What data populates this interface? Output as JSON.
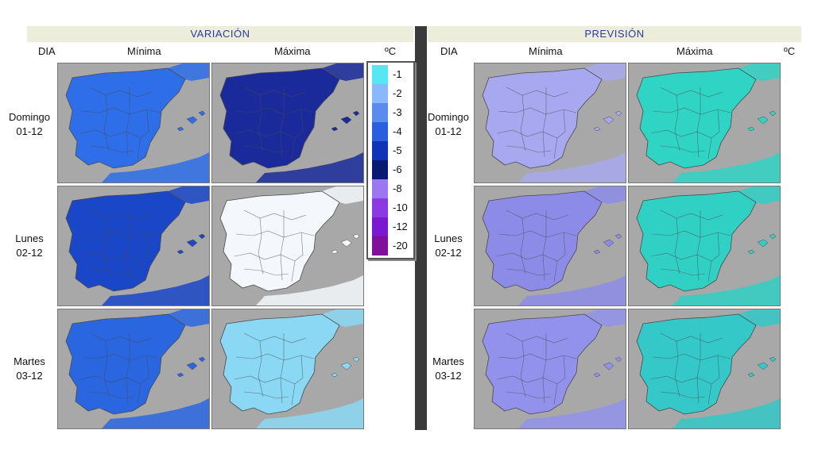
{
  "variacion": {
    "title": "VARIACIÓN",
    "col_dia": "DIA",
    "col_min": "Mínima",
    "col_max": "Máxima",
    "unit": "ºC"
  },
  "prevision": {
    "title": "PREVISIÓN",
    "col_dia": "DIA",
    "col_min": "Mínima",
    "col_max": "Máxima",
    "unit": "ºC"
  },
  "days": [
    {
      "name": "Domingo",
      "date": "01-12"
    },
    {
      "name": "Lunes",
      "date": "02-12"
    },
    {
      "name": "Martes",
      "date": "03-12"
    }
  ],
  "legend": [
    {
      "label": "-1",
      "color": "#55e8f4"
    },
    {
      "label": "-2",
      "color": "#8ab8ff"
    },
    {
      "label": "-3",
      "color": "#5a8cf0"
    },
    {
      "label": "-4",
      "color": "#2a5ee0"
    },
    {
      "label": "-5",
      "color": "#1034b8"
    },
    {
      "label": "-6",
      "color": "#0a1a72"
    },
    {
      "label": "-8",
      "color": "#9c78f0"
    },
    {
      "label": "-10",
      "color": "#8a3ae0"
    },
    {
      "label": "-12",
      "color": "#7a1ad0"
    },
    {
      "label": "-20",
      "color": "#80109a"
    }
  ],
  "map_colors": {
    "var_min_0": "#2e6ee8",
    "var_max_0": "#1a2a9a",
    "var_min_1": "#1a46c8",
    "var_max_1": "#f4f8fc",
    "var_min_2": "#2a66e0",
    "var_max_2": "#8ad8f4",
    "prev_min_0": "#a8a8f0",
    "prev_max_0": "#30d4c4",
    "prev_min_1": "#8c8ce8",
    "prev_max_1": "#30d0c4",
    "prev_min_2": "#9292ec",
    "prev_max_2": "#34c8c8",
    "sea": "#a8a8a8",
    "border": "#4a4a4a"
  }
}
